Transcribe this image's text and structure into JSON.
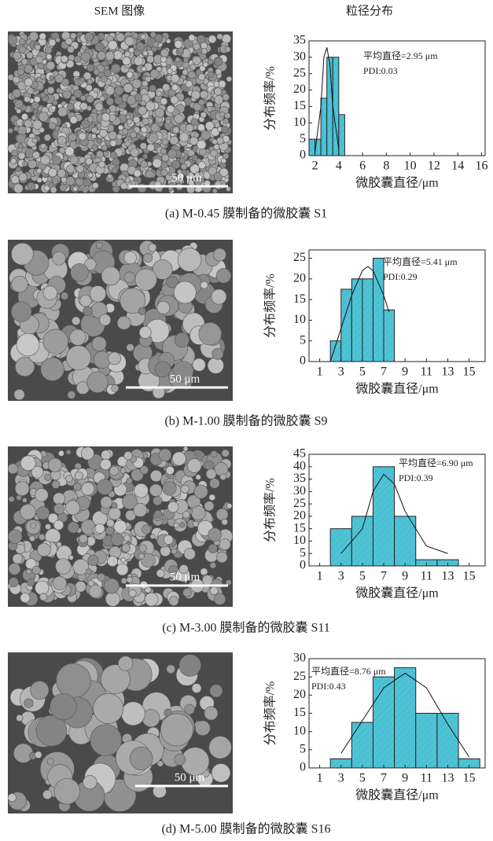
{
  "headers": {
    "sem": "SEM 图像",
    "distribution": "粒径分布"
  },
  "chart_data": [
    {
      "type": "histogram",
      "caption": "(a) M-0.45 膜制备的微胶囊 S1",
      "scale_bar_label": "50 μm",
      "xlabel": "微胶囊直径/μm",
      "ylabel": "分布频率/%",
      "annotations": [
        "平均直径=2.95 μm",
        "PDI:0.03"
      ],
      "bins": [
        1.5,
        2,
        2.5,
        3,
        3.5,
        4,
        4.5
      ],
      "values": [
        5,
        5,
        17.5,
        30,
        30,
        12.5
      ],
      "color": "#4fc3d6",
      "fit": {
        "x": [
          2,
          2.5,
          2.75,
          3,
          3.25,
          3.5,
          4
        ],
        "y": [
          1,
          15,
          30,
          33,
          28,
          15,
          2
        ]
      },
      "xlim": [
        1.5,
        16.3
      ],
      "ylim": [
        0,
        35
      ],
      "xticks": [
        2,
        4,
        6,
        8,
        10,
        12,
        14,
        16
      ],
      "yticks": [
        0,
        5,
        10,
        15,
        20,
        25,
        30,
        35
      ]
    },
    {
      "type": "histogram",
      "caption": "(b) M-1.00 膜制备的微胶囊 S9",
      "scale_bar_label": "50 μm",
      "xlabel": "微胶囊直径/μm",
      "ylabel": "分布频率/%",
      "annotations": [
        "平均直径=5.41 μm",
        "PDI:0.29"
      ],
      "bins": [
        2,
        3,
        4,
        5,
        6,
        7,
        8
      ],
      "values": [
        5,
        17.5,
        20,
        20,
        25,
        12.5
      ],
      "color": "#4fc3d6",
      "fit": {
        "x": [
          2,
          3,
          4,
          5,
          5.5,
          6,
          7,
          7.5
        ],
        "y": [
          0,
          8,
          16,
          22,
          23,
          22,
          16,
          12
        ]
      },
      "xlim": [
        0,
        16.5
      ],
      "ylim": [
        0,
        27
      ],
      "xticks": [
        1,
        3,
        5,
        7,
        9,
        11,
        13,
        15
      ],
      "yticks": [
        0,
        5,
        10,
        15,
        20,
        25
      ]
    },
    {
      "type": "histogram",
      "caption": "(c) M-3.00 膜制备的微胶囊 S11",
      "scale_bar_label": "50 μm",
      "xlabel": "微胶囊直径/μm",
      "ylabel": "分布频率/%",
      "annotations": [
        "平均直径=6.90 μm",
        "PDI:0.39"
      ],
      "bins": [
        2,
        4,
        6,
        8,
        10,
        12,
        14
      ],
      "values": [
        15,
        20,
        40,
        20,
        2.5,
        2.5
      ],
      "color": "#4fc3d6",
      "fit": {
        "x": [
          3,
          5,
          6,
          7,
          8,
          9,
          11,
          13
        ],
        "y": [
          5,
          15,
          30,
          37,
          33,
          22,
          8,
          5
        ]
      },
      "xlim": [
        0,
        16.5
      ],
      "ylim": [
        0,
        45
      ],
      "xticks": [
        1,
        3,
        5,
        7,
        9,
        11,
        13,
        15
      ],
      "yticks": [
        0,
        5,
        10,
        15,
        20,
        25,
        30,
        35,
        40,
        45
      ]
    },
    {
      "type": "histogram",
      "caption": "(d) M-5.00 膜制备的微胶囊 S16",
      "scale_bar_label": "50 μm",
      "xlabel": "微胶囊直径/μm",
      "ylabel": "分布频率/%",
      "annotations": [
        "平均直径=8.76 μm",
        "PDI:0.43"
      ],
      "bins": [
        2,
        4,
        6,
        8,
        10,
        12,
        14,
        16
      ],
      "values": [
        2.5,
        12.5,
        25,
        27.5,
        15,
        15,
        2.5
      ],
      "color": "#4fc3d6",
      "fit": {
        "x": [
          3,
          5,
          7,
          9,
          11,
          13,
          15
        ],
        "y": [
          4,
          13,
          22,
          26,
          22,
          12,
          3
        ]
      },
      "xlim": [
        0,
        16.5
      ],
      "ylim": [
        0,
        30
      ],
      "xticks": [
        1,
        3,
        5,
        7,
        9,
        11,
        13,
        15
      ],
      "yticks": [
        0,
        5,
        10,
        15,
        20,
        25,
        30
      ]
    }
  ]
}
